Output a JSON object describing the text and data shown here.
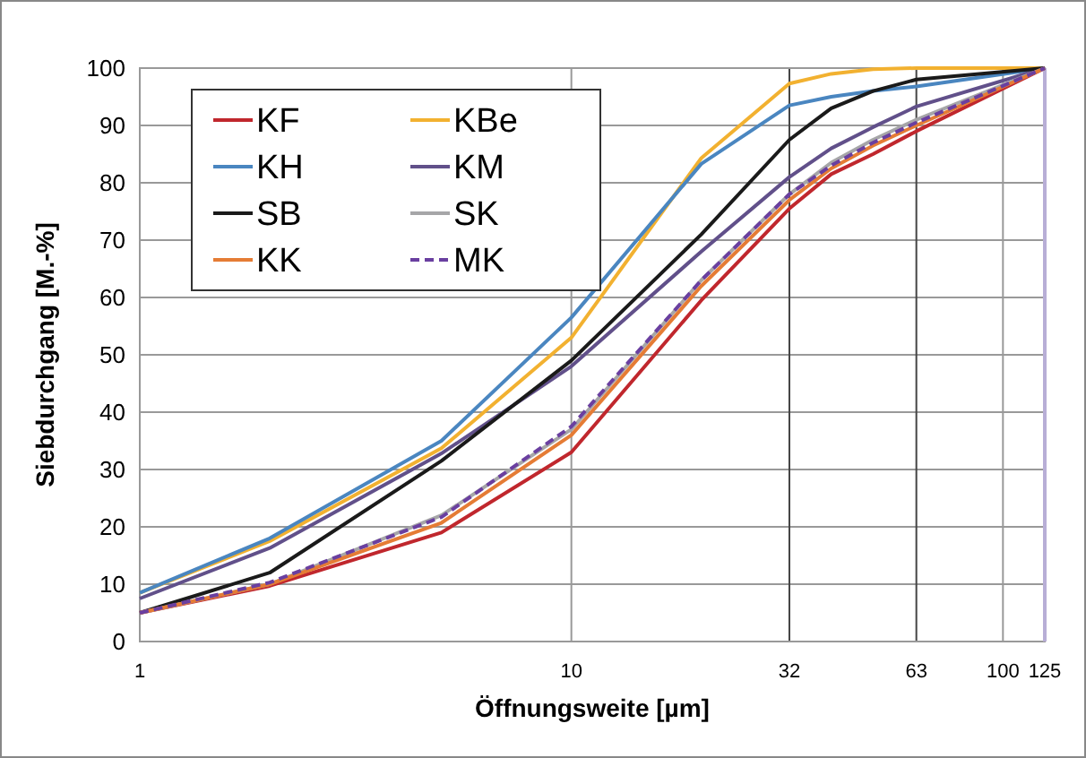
{
  "chart_data": {
    "type": "line",
    "xlabel": "Öffnungsweite [µm]",
    "ylabel": "Siebdurchgang [M.-%]",
    "log": "x",
    "grid": true,
    "legend": "top left",
    "marker": "none",
    "x": [
      1,
      2,
      5,
      10,
      20,
      32,
      40,
      50,
      63,
      125
    ],
    "xlim": [
      1,
      125
    ],
    "xticks": [
      1,
      10,
      32,
      63,
      100,
      125
    ],
    "ylim": [
      0,
      100
    ],
    "yticks": [
      0,
      10,
      20,
      30,
      40,
      50,
      60,
      70,
      80,
      90,
      100
    ],
    "series": [
      {
        "name": "KF",
        "color": "#c0272d",
        "values": [
          5,
          9.7,
          19,
          33,
          59.5,
          75.5,
          81.5,
          85,
          89,
          100
        ]
      },
      {
        "name": "KBe",
        "color": "#f2b130",
        "values": [
          8.5,
          17.5,
          33.7,
          53,
          84.3,
          97.3,
          99,
          99.8,
          100,
          100
        ]
      },
      {
        "name": "KH",
        "color": "#4a86c0",
        "values": [
          8.5,
          18,
          35,
          56.5,
          83.3,
          93.5,
          95,
          96,
          96.8,
          100
        ]
      },
      {
        "name": "KM",
        "color": "#61508a",
        "values": [
          7.5,
          16.3,
          32.8,
          48,
          68,
          81,
          86,
          89.7,
          93.3,
          100
        ]
      },
      {
        "name": "SB",
        "color": "#1a1a1a",
        "values": [
          5,
          12,
          31.5,
          49,
          71,
          87.5,
          93,
          96,
          98,
          100
        ]
      },
      {
        "name": "SK",
        "color": "#a6a6a8",
        "values": [
          5,
          10,
          22,
          37,
          63,
          78,
          83.5,
          87.5,
          91,
          100
        ]
      },
      {
        "name": "KK",
        "color": "#e57c35",
        "values": [
          5,
          10,
          20.7,
          36,
          62,
          77,
          82.5,
          86.5,
          90,
          100
        ]
      },
      {
        "name": "MK",
        "color": "#6a3fa0",
        "line_style": "dashed",
        "values": [
          5,
          10.3,
          21.7,
          37.5,
          63,
          78,
          83,
          87,
          90.5,
          100
        ]
      }
    ]
  }
}
